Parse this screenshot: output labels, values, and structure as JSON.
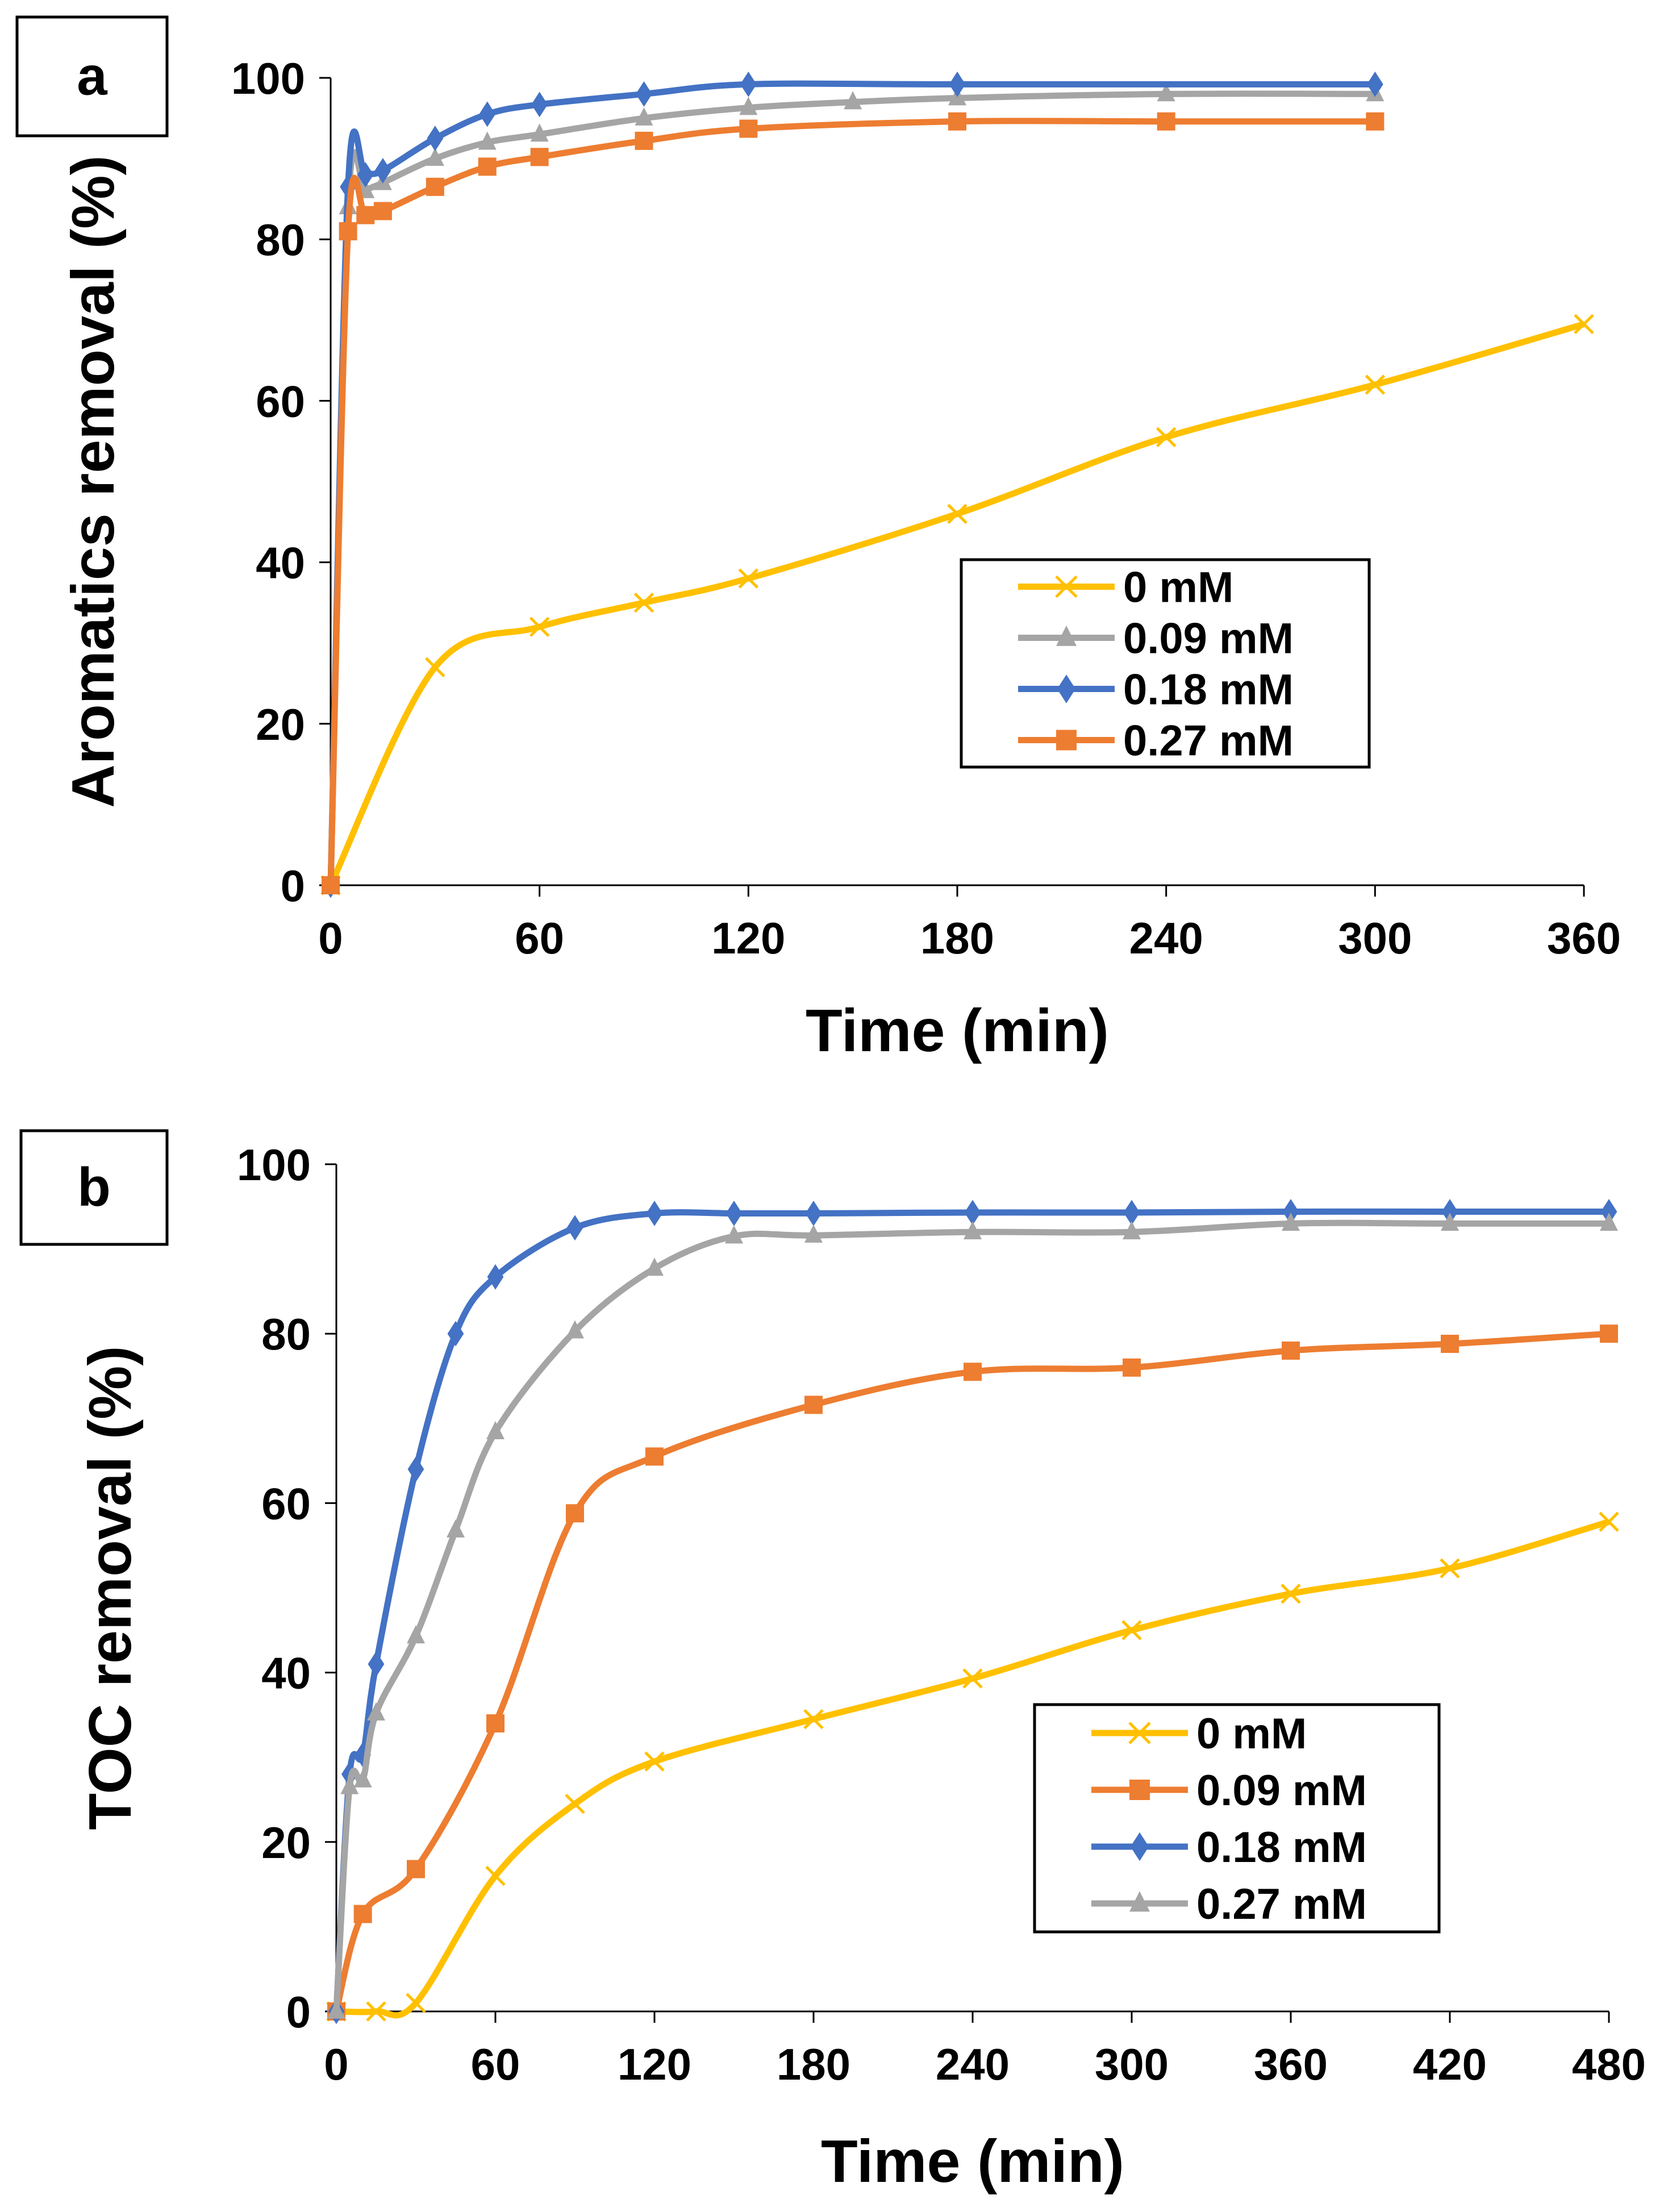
{
  "chart_data": [
    {
      "type": "line",
      "panel_label": "a",
      "xlabel": "Time (min)",
      "ylabel": "Aromatics removal (%)",
      "xlim": [
        0,
        360
      ],
      "ylim": [
        0,
        100
      ],
      "xticks": [
        0,
        60,
        120,
        180,
        240,
        300,
        360
      ],
      "yticks": [
        0,
        20,
        40,
        60,
        80,
        100
      ],
      "grid": false,
      "legend_position": "center-right",
      "series": [
        {
          "name": "0 mM",
          "color": "#FFC000",
          "marker": "x",
          "x": [
            0,
            30,
            60,
            90,
            120,
            180,
            240,
            300,
            360
          ],
          "y": [
            0,
            27,
            32,
            35,
            38,
            46,
            55.5,
            62,
            69.5
          ]
        },
        {
          "name": "0.09 mM",
          "color": "#A5A5A5",
          "marker": "triangle",
          "x": [
            0,
            5,
            10,
            15,
            30,
            45,
            60,
            90,
            120,
            150,
            180,
            240,
            300
          ],
          "y": [
            0,
            84,
            86,
            87,
            90,
            92,
            93,
            95,
            96.3,
            97,
            97.5,
            98,
            98
          ]
        },
        {
          "name": "0.18 mM",
          "color": "#4472C4",
          "marker": "diamond",
          "x": [
            0,
            5,
            10,
            15,
            30,
            45,
            60,
            90,
            120,
            180,
            300
          ],
          "y": [
            0,
            86.5,
            88,
            88.5,
            92.5,
            95.5,
            96.7,
            98,
            99.2,
            99.2,
            99.2
          ]
        },
        {
          "name": "0.27 mM",
          "color": "#ED7D31",
          "marker": "square",
          "x": [
            0,
            5,
            10,
            15,
            30,
            45,
            60,
            90,
            120,
            180,
            240,
            300
          ],
          "y": [
            0,
            81,
            83,
            83.5,
            86.5,
            89,
            90.2,
            92.2,
            93.7,
            94.6,
            94.6,
            94.6
          ]
        }
      ]
    },
    {
      "type": "line",
      "panel_label": "b",
      "xlabel": "Time (min)",
      "ylabel": "TOC removal (%)",
      "xlim": [
        0,
        480
      ],
      "ylim": [
        0,
        100
      ],
      "xticks": [
        0,
        60,
        120,
        180,
        240,
        300,
        360,
        420,
        480
      ],
      "yticks": [
        0,
        20,
        40,
        60,
        80,
        100
      ],
      "grid": false,
      "legend_position": "bottom-right",
      "series": [
        {
          "name": "0 mM",
          "color": "#FFC000",
          "marker": "x",
          "x": [
            0,
            15,
            30,
            60,
            90,
            120,
            180,
            240,
            300,
            360,
            420,
            480
          ],
          "y": [
            0,
            0,
            1,
            16,
            24.5,
            29.5,
            34.5,
            39.3,
            45,
            49.3,
            52.3,
            57.8
          ]
        },
        {
          "name": "0.09 mM",
          "color": "#ED7D31",
          "marker": "square",
          "x": [
            0,
            10,
            30,
            60,
            90,
            120,
            180,
            240,
            300,
            360,
            420,
            480
          ],
          "y": [
            0,
            11.5,
            16.8,
            34,
            58.8,
            65.5,
            71.6,
            75.5,
            76,
            78,
            78.8,
            80
          ]
        },
        {
          "name": "0.18 mM",
          "color": "#4472C4",
          "marker": "diamond",
          "x": [
            0,
            5,
            10,
            15,
            30,
            45,
            60,
            90,
            120,
            150,
            180,
            240,
            300,
            360,
            420,
            480
          ],
          "y": [
            0,
            28,
            30.3,
            41,
            64,
            80,
            86.7,
            92.5,
            94.2,
            94.2,
            94.2,
            94.3,
            94.3,
            94.4,
            94.4,
            94.4
          ]
        },
        {
          "name": "0.27 mM",
          "color": "#A5A5A5",
          "marker": "triangle",
          "x": [
            0,
            5,
            10,
            15,
            30,
            45,
            60,
            90,
            120,
            150,
            180,
            240,
            300,
            360,
            420,
            480
          ],
          "y": [
            0,
            26.5,
            27.3,
            35.2,
            44.3,
            56.8,
            68.4,
            80.3,
            87.7,
            91.5,
            91.6,
            92,
            92,
            93,
            93,
            93
          ]
        }
      ]
    }
  ]
}
